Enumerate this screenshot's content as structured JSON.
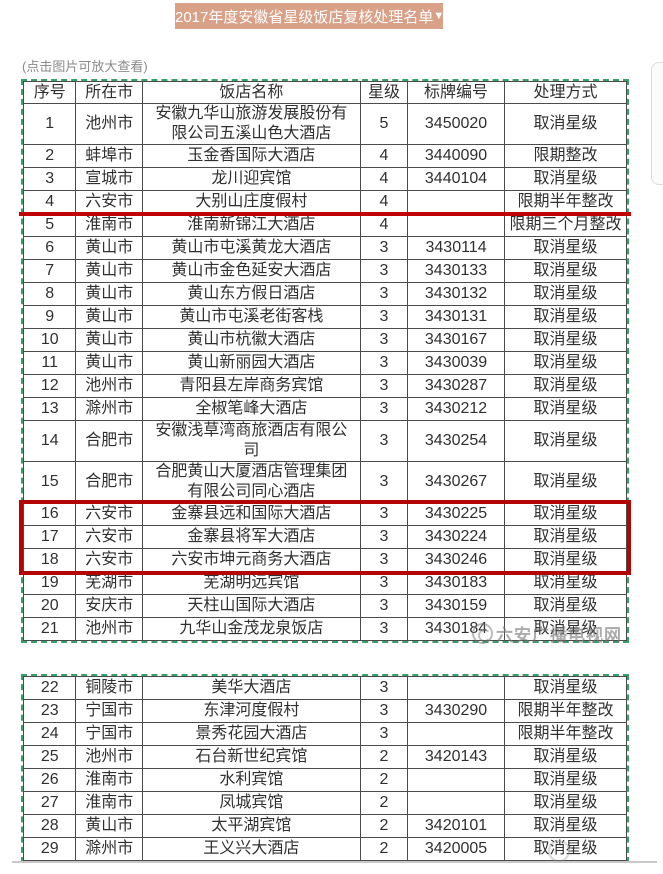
{
  "title_bar": {
    "title": "2017年度安徽省星级饭店复核处理名单",
    "dropdown_icon": "▼"
  },
  "hint": "(点击图片可放大查看)",
  "watermark": {
    "text": "六安广播电视网"
  },
  "colors": {
    "title_bar_bg": "#d8a188",
    "annotation_red": "#bf0303",
    "selection_dash_green": "#3a9e6c",
    "grid_line": "#4b4b4b",
    "watermark_gray": "#787878"
  },
  "annotations": {
    "red_underline_after_row": "4",
    "red_box_rows": "16-18"
  },
  "table": {
    "headers": [
      "序号",
      "所在市",
      "饭店名称",
      "星级",
      "标牌编号",
      "处理方式"
    ],
    "blocks": [
      {
        "rows": [
          [
            "1",
            "池州市",
            "安徽九华山旅游发展股份有限公司五溪山色大酒店",
            "5",
            "3450020",
            "取消星级"
          ],
          [
            "2",
            "蚌埠市",
            "玉金香国际大酒店",
            "4",
            "3440090",
            "限期整改"
          ],
          [
            "3",
            "宣城市",
            "龙川迎宾馆",
            "4",
            "3440104",
            "取消星级"
          ],
          [
            "4",
            "六安市",
            "大别山庄度假村",
            "4",
            "",
            "限期半年整改"
          ],
          [
            "5",
            "淮南市",
            "淮南新锦江大酒店",
            "4",
            "",
            "限期三个月整改"
          ],
          [
            "6",
            "黄山市",
            "黄山市屯溪黄龙大酒店",
            "3",
            "3430114",
            "取消星级"
          ],
          [
            "7",
            "黄山市",
            "黄山市金色延安大酒店",
            "3",
            "3430133",
            "取消星级"
          ],
          [
            "8",
            "黄山市",
            "黄山东方假日酒店",
            "3",
            "3430132",
            "取消星级"
          ],
          [
            "9",
            "黄山市",
            "黄山市屯溪老街客栈",
            "3",
            "3430131",
            "取消星级"
          ],
          [
            "10",
            "黄山市",
            "黄山市杭徽大酒店",
            "3",
            "3430167",
            "取消星级"
          ],
          [
            "11",
            "黄山市",
            "黄山新丽园大酒店",
            "3",
            "3430039",
            "取消星级"
          ],
          [
            "12",
            "池州市",
            "青阳县左岸商务宾馆",
            "3",
            "3430287",
            "取消星级"
          ],
          [
            "13",
            "滁州市",
            "全椒笔峰大酒店",
            "3",
            "3430212",
            "取消星级"
          ],
          [
            "14",
            "合肥市",
            "安徽浅草湾商旅酒店有限公司",
            "3",
            "3430254",
            "取消星级"
          ],
          [
            "15",
            "合肥市",
            "合肥黄山大厦酒店管理集团有限公司同心酒店",
            "3",
            "3430267",
            "取消星级"
          ],
          [
            "16",
            "六安市",
            "金寨县远和国际大酒店",
            "3",
            "3430225",
            "取消星级"
          ],
          [
            "17",
            "六安市",
            "金寨县将军大酒店",
            "3",
            "3430224",
            "取消星级"
          ],
          [
            "18",
            "六安市",
            "六安市坤元商务大酒店",
            "3",
            "3430246",
            "取消星级"
          ],
          [
            "19",
            "芜湖市",
            "芜湖明远宾馆",
            "3",
            "3430183",
            "取消星级"
          ],
          [
            "20",
            "安庆市",
            "天柱山国际大酒店",
            "3",
            "3430159",
            "取消星级"
          ],
          [
            "21",
            "池州市",
            "九华山金茂龙泉饭店",
            "3",
            "3430184",
            "取消星级"
          ]
        ]
      },
      {
        "rows": [
          [
            "22",
            "铜陵市",
            "美华大酒店",
            "3",
            "",
            "取消星级"
          ],
          [
            "23",
            "宁国市",
            "东津河度假村",
            "3",
            "3430290",
            "限期半年整改"
          ],
          [
            "24",
            "宁国市",
            "景秀花园大酒店",
            "3",
            "",
            "限期半年整改"
          ],
          [
            "25",
            "池州市",
            "石台新世纪宾馆",
            "2",
            "3420143",
            "取消星级"
          ],
          [
            "26",
            "淮南市",
            "水利宾馆",
            "2",
            "",
            "取消星级"
          ],
          [
            "27",
            "淮南市",
            "凤城宾馆",
            "2",
            "",
            "取消星级"
          ],
          [
            "28",
            "黄山市",
            "太平湖宾馆",
            "2",
            "3420101",
            "取消星级"
          ],
          [
            "29",
            "滁州市",
            "王义兴大酒店",
            "2",
            "3420005",
            "取消星级"
          ]
        ]
      }
    ]
  }
}
